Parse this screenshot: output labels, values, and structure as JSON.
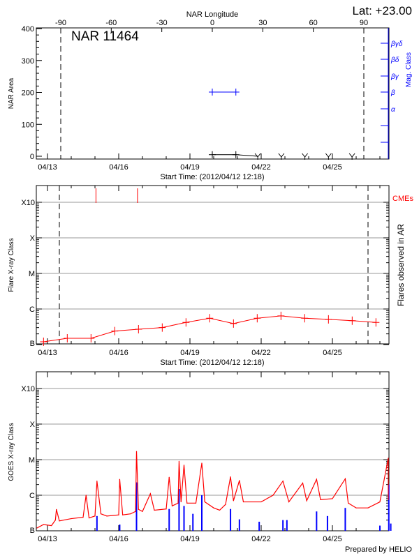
{
  "header": {
    "lat_label": "Lat: +23.00"
  },
  "chart_data": [
    {
      "type": "line",
      "title": "NAR 11464",
      "xlabel": "Start Time: (2012/04/12 12:18)",
      "ylabel": "NAR Area",
      "top_xlabel": "NAR Longitude",
      "right_ylabel": "Mag. Class",
      "x_tick_labels": [
        "04/13",
        "04/16",
        "04/19",
        "04/22",
        "04/25"
      ],
      "top_tick_labels": [
        "-90",
        "-60",
        "-30",
        "0",
        "30",
        "60",
        "90"
      ],
      "top_tick_values": [
        -90,
        -60,
        -30,
        0,
        30,
        60,
        90
      ],
      "y_tick_labels": [
        "0",
        "100",
        "200",
        "300",
        "400"
      ],
      "ylim": [
        0,
        400
      ],
      "right_tick_labels": [
        "α",
        "β",
        "βγ",
        "βδ",
        "βγδ"
      ],
      "limb_longitudes": [
        -90,
        90
      ],
      "area_series": {
        "color": "#000000",
        "longitude": [
          0,
          14
        ],
        "values": [
          5,
          5
        ]
      },
      "area_off_disk_longitudes": [
        27,
        41,
        55,
        69,
        83
      ],
      "mag_class_series": {
        "color": "#0000ff",
        "longitude": [
          0,
          14
        ],
        "class": [
          "β",
          "β"
        ]
      }
    },
    {
      "type": "line",
      "xlabel": "Start Time: (2012/04/12 12:18)",
      "ylabel": "Flare X-ray Class",
      "right_ylabel": "Flares observed in AR",
      "x_tick_labels": [
        "04/13",
        "04/16",
        "04/19",
        "04/22",
        "04/25"
      ],
      "y_tick_labels": [
        "B",
        "C",
        "M",
        "X",
        "X10"
      ],
      "y_scale": "log",
      "grid": true,
      "color": "#ff0000",
      "cme_label": "CMEs",
      "cme_times": [
        "04/15 01:00",
        "04/16 19:00"
      ],
      "x": [
        "04/12 20:00",
        "04/13 20:00",
        "04/14 20:00",
        "04/15 20:00",
        "04/16 20:00",
        "04/17 20:00",
        "04/18 20:00",
        "04/19 20:00",
        "04/20 20:00",
        "04/21 20:00",
        "04/22 20:00",
        "04/23 20:00",
        "04/24 20:00",
        "04/25 20:00",
        "04/26 20:00"
      ],
      "values": [
        "B1.2",
        "B1.5",
        "B1.5",
        "B2.4",
        "B2.7",
        "B3.0",
        "B4.2",
        "B5.5",
        "B3.9",
        "B5.5",
        "B6.4",
        "B5.5",
        "B5.1",
        "B4.7",
        "B4.2"
      ],
      "limb_times": [
        "04/13 12:00",
        "04/26 12:00"
      ]
    },
    {
      "type": "line",
      "ylabel": "GOES X-ray Class",
      "x_tick_labels": [
        "04/13",
        "04/16",
        "04/19",
        "04/22",
        "04/25"
      ],
      "y_tick_labels": [
        "B",
        "C",
        "M",
        "X",
        "X10"
      ],
      "y_scale": "log",
      "grid": true,
      "series": [
        {
          "color": "#ff0000",
          "x": [
            "04/12 13:00",
            "04/12 20:00",
            "04/13 04:00",
            "04/13 08:00",
            "04/13 09:00",
            "04/13 12:00",
            "04/14 00:00",
            "04/14 12:00",
            "04/14 15:00",
            "04/14 18:00",
            "04/15 00:00",
            "04/15 02:00",
            "04/15 06:00",
            "04/15 12:00",
            "04/16 00:00",
            "04/16 01:00",
            "04/16 04:00",
            "04/16 12:00",
            "04/16 17:00",
            "04/16 18:00",
            "04/16 20:00",
            "04/17 00:00",
            "04/17 08:00",
            "04/17 12:00",
            "04/18 00:00",
            "04/18 03:00",
            "04/18 06:00",
            "04/18 12:00",
            "04/18 13:00",
            "04/18 15:00",
            "04/18 18:00",
            "04/18 21:00",
            "04/19 06:00",
            "04/19 12:00",
            "04/19 15:00",
            "04/20 00:00",
            "04/20 06:00",
            "04/20 12:00",
            "04/20 17:00",
            "04/20 20:00",
            "04/21 02:00",
            "04/21 06:00",
            "04/22 00:00",
            "04/22 12:00",
            "04/22 22:00",
            "04/23 04:00",
            "04/23 18:00",
            "04/23 22:00",
            "04/24 08:00",
            "04/24 12:00",
            "04/25 00:00",
            "04/25 13:00",
            "04/25 16:00",
            "04/26 00:00",
            "04/26 12:00",
            "04/27 00:00",
            "04/27 09:00",
            "04/27 10:00",
            "04/27 21:00"
          ],
          "values": [
            "B1.2",
            "B1.5",
            "B1.4",
            "B2.0",
            "B4.0",
            "B1.9",
            "B2.2",
            "B2.4",
            "C1.0",
            "B2.3",
            "B2.6",
            "C2.5",
            "B3.0",
            "B2.6",
            "B2.8",
            "C2.8",
            "B2.8",
            "B3.0",
            "B3.5",
            "M1.7",
            "B4.0",
            "B3.5",
            "C1.1",
            "B3.8",
            "B4.1",
            "C3.2",
            "B5.0",
            "B6.0",
            "M0.9",
            "B6.5",
            "C7.0",
            "B6.0",
            "B6.0",
            "C8.0",
            "B6.5",
            "B4.4",
            "B3.8",
            "B5.5",
            "C3.3",
            "B7.0",
            "C2.6",
            "B6.5",
            "B6.5",
            "C1.0",
            "C2.5",
            "B6.5",
            "C2.2",
            "B7.0",
            "C2.8",
            "B7.5",
            "B8.0",
            "C2.9",
            "B6.0",
            "B4.4",
            "B4.4",
            "B6.5",
            "M1.1",
            "C1.0",
            "B7.5"
          ]
        },
        {
          "color": "#0000ff",
          "x": [
            "04/15 02:00",
            "04/16 01:00",
            "04/16 18:00",
            "04/18 03:00",
            "04/18 13:00",
            "04/18 18:00",
            "04/19 03:00",
            "04/19 12:00",
            "04/20 17:00",
            "04/21 02:00",
            "04/21 22:00",
            "04/22 22:00",
            "04/23 02:00",
            "04/24 08:00",
            "04/24 19:00",
            "04/25 13:00",
            "04/27 00:00",
            "04/27 09:00",
            "04/27 11:00"
          ],
          "values": [
            "B2.6",
            "B1.5",
            "C2.3",
            "B4.1",
            "C1.5",
            "B5.0",
            "B3.0",
            "C1.0",
            "B4.1",
            "B2.1",
            "B1.8",
            "B2.0",
            "B2.0",
            "B3.5",
            "B2.6",
            "B4.4",
            "B1.4",
            "C2.0",
            "B1.6"
          ]
        }
      ]
    }
  ],
  "footer": {
    "credit": "Prepared by HELIO"
  }
}
